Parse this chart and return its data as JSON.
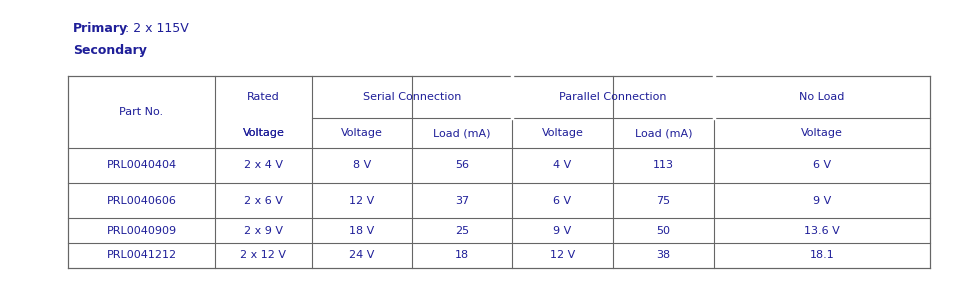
{
  "primary_bold": "Primary",
  "primary_rest": ": 2 x 115V",
  "secondary_bold": "Secondary",
  "secondary_rest": ":",
  "text_color": "#1f1f99",
  "line_color": "#666666",
  "bg_color": "#ffffff",
  "font_size": 8.0,
  "bold_font_size": 9.0,
  "rows": [
    [
      "PRL0040404",
      "2 x 4 V",
      "8 V",
      "56",
      "4 V",
      "113",
      "6 V"
    ],
    [
      "PRL0040606",
      "2 x 6 V",
      "12 V",
      "37",
      "6 V",
      "75",
      "9 V"
    ],
    [
      "PRL0040909",
      "2 x 9 V",
      "18 V",
      "25",
      "9 V",
      "50",
      "13.6 V"
    ],
    [
      "PRL0041212",
      "2 x 12 V",
      "24 V",
      "18",
      "12 V",
      "38",
      "18.1"
    ]
  ]
}
